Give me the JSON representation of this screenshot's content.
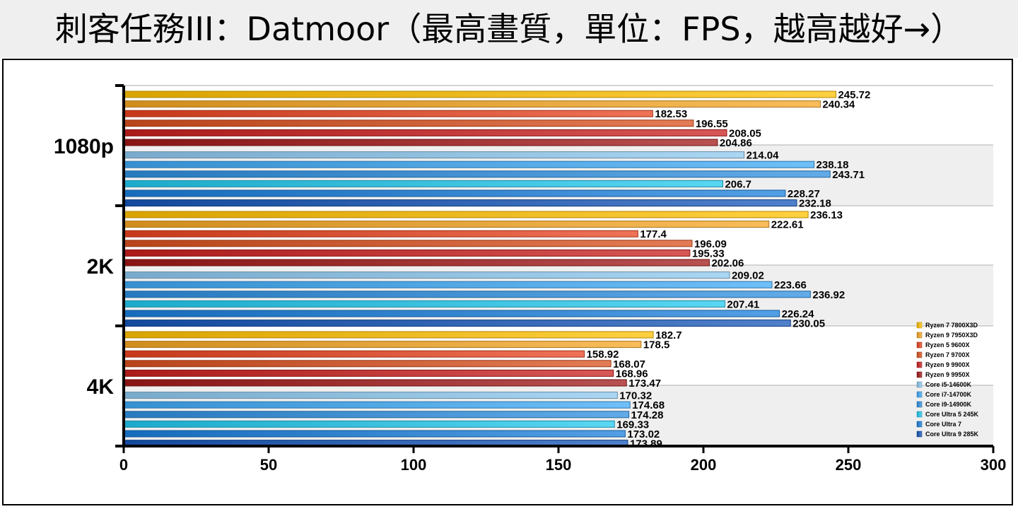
{
  "title": "刺客任務III：Datmoor（最高畫質，單位：FPS，越高越好→）",
  "chart_data": {
    "type": "bar",
    "orientation": "horizontal",
    "title": "刺客任務III：Datmoor（最高畫質，單位：FPS，越高越好→）",
    "unit": "FPS",
    "xlim": [
      0,
      300
    ],
    "xticks": [
      "0",
      "50",
      "100",
      "150",
      "200",
      "250",
      "300"
    ],
    "categories": [
      "1080p",
      "2K",
      "4K"
    ],
    "legend_position": "bottom-right",
    "series": [
      {
        "name": "Ryzen 7 7800X3D",
        "color": "#ffc000",
        "values": [
          245.72,
          236.13,
          182.7
        ],
        "labels": [
          "245.72",
          "236.13",
          "182.7"
        ]
      },
      {
        "name": "Ryzen 9 7950X3D",
        "color": "#f5a623",
        "values": [
          240.34,
          222.61,
          178.5
        ],
        "labels": [
          "240.34",
          "222.61",
          "178.5"
        ]
      },
      {
        "name": "Ryzen 5 9600X",
        "color": "#e8431f",
        "values": [
          182.53,
          177.4,
          158.92
        ],
        "labels": [
          "182.53",
          "177.4",
          "158.92"
        ]
      },
      {
        "name": "Ryzen 7 9700X",
        "color": "#d9501e",
        "values": [
          196.55,
          196.09,
          168.07
        ],
        "labels": [
          "196.55",
          "196.09",
          "168.07"
        ]
      },
      {
        "name": "Ryzen 9 9900X",
        "color": "#c8201e",
        "values": [
          208.05,
          195.33,
          168.96
        ],
        "labels": [
          "208.05",
          "195.33",
          "168.96"
        ]
      },
      {
        "name": "Ryzen 9 9950X",
        "color": "#a01818",
        "values": [
          204.86,
          202.06,
          173.47
        ],
        "labels": [
          "204.86",
          "202.06",
          "173.47"
        ]
      },
      {
        "name": "Core i5-14600K",
        "color": "#8ec8ef",
        "values": [
          214.04,
          209.02,
          170.32
        ],
        "labels": [
          "214.04",
          "209.02",
          "170.32"
        ]
      },
      {
        "name": "Core i7-14700K",
        "color": "#3fa9f5",
        "values": [
          238.18,
          223.66,
          174.68
        ],
        "labels": [
          "238.18",
          "223.66",
          "174.68"
        ]
      },
      {
        "name": "Core i9-14900K",
        "color": "#2e8fe0",
        "values": [
          243.71,
          236.92,
          174.28
        ],
        "labels": [
          "243.71",
          "236.92",
          "174.28"
        ]
      },
      {
        "name": "Core Ultra 5 245K",
        "color": "#22c8ee",
        "values": [
          206.7,
          207.41,
          169.33
        ],
        "labels": [
          "206.7",
          "207.41",
          "169.33"
        ]
      },
      {
        "name": "Core Ultra 7",
        "color": "#1a7fdc",
        "values": [
          228.27,
          226.24,
          173.02
        ],
        "labels": [
          "228.27",
          "226.24",
          "173.02"
        ]
      },
      {
        "name": "Core Ultra 9 285K",
        "color": "#1656b8",
        "values": [
          232.18,
          230.05,
          173.89
        ],
        "labels": [
          "232.18",
          "230.05",
          "173.89"
        ]
      }
    ]
  }
}
